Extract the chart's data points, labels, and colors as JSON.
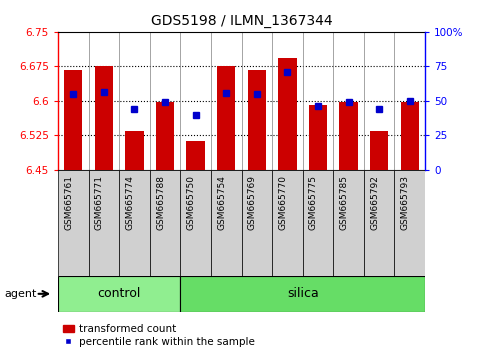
{
  "title": "GDS5198 / ILMN_1367344",
  "samples": [
    "GSM665761",
    "GSM665771",
    "GSM665774",
    "GSM665788",
    "GSM665750",
    "GSM665754",
    "GSM665769",
    "GSM665770",
    "GSM665775",
    "GSM665785",
    "GSM665792",
    "GSM665793"
  ],
  "n_control": 4,
  "n_silica": 8,
  "bar_values": [
    6.668,
    6.675,
    6.535,
    6.598,
    6.513,
    6.675,
    6.668,
    6.693,
    6.59,
    6.598,
    6.535,
    6.598
  ],
  "dot_values": [
    6.615,
    6.62,
    6.583,
    6.598,
    6.57,
    6.618,
    6.616,
    6.663,
    6.588,
    6.598,
    6.583,
    6.6
  ],
  "ymin": 6.45,
  "ymax": 6.75,
  "yticks": [
    6.45,
    6.525,
    6.6,
    6.675,
    6.75
  ],
  "ytick_labels": [
    "6.45",
    "6.525",
    "6.6",
    "6.675",
    "6.75"
  ],
  "y2ticks": [
    0,
    25,
    50,
    75,
    100
  ],
  "y2tick_labels": [
    "0",
    "25",
    "50",
    "75",
    "100%"
  ],
  "grid_lines": [
    6.525,
    6.6,
    6.675
  ],
  "bar_color": "#cc0000",
  "dot_color": "#0000cc",
  "control_color": "#90ee90",
  "silica_color": "#66dd66",
  "label_bg_color": "#d0d0d0",
  "agent_label": "agent",
  "group_label_control": "control",
  "group_label_silica": "silica",
  "legend_bar": "transformed count",
  "legend_dot": "percentile rank within the sample"
}
